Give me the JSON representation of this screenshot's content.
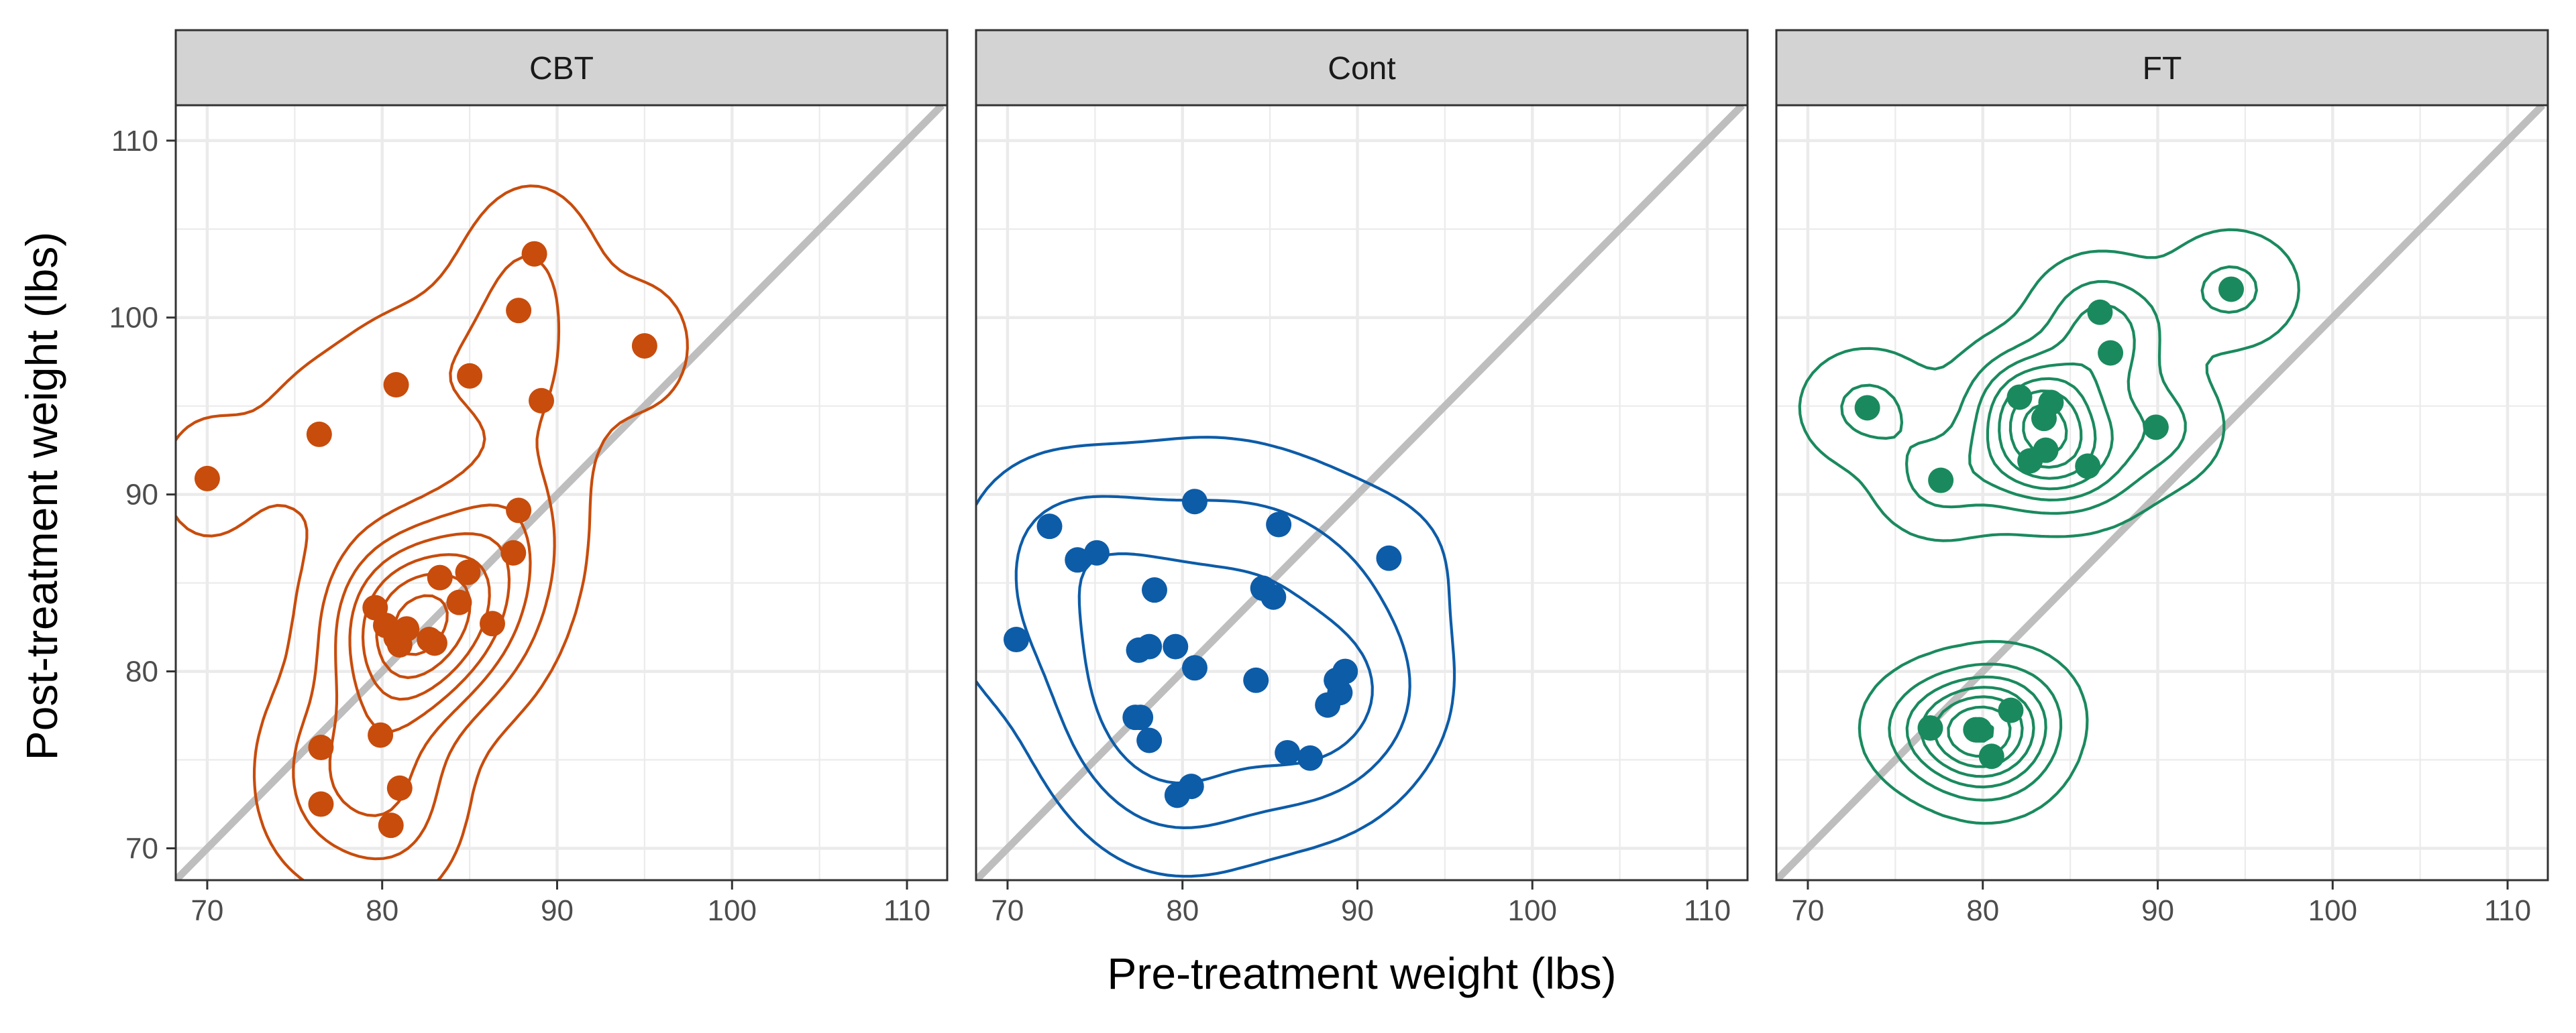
{
  "chart_data": {
    "type": "scatter",
    "facet_by": "Treat",
    "xlabel": "Pre-treatment weight (lbs)",
    "ylabel": "Post-treatment weight (lbs)",
    "xlim": [
      68.2,
      112.3
    ],
    "ylim": [
      68.2,
      112.0
    ],
    "x_ticks": [
      70,
      80,
      90,
      100,
      110
    ],
    "y_ticks": [
      70,
      80,
      90,
      100,
      110
    ],
    "x_tick_labels": [
      "70",
      "80",
      "90",
      "100",
      "110"
    ],
    "y_tick_labels": [
      "70",
      "80",
      "90",
      "100",
      "110"
    ],
    "grid": true,
    "reference_line": {
      "type": "identity",
      "slope": 1,
      "intercept": 0,
      "color": "#bebebe"
    },
    "overlays": [
      "points",
      "2d density contours"
    ],
    "panels": [
      {
        "label": "CBT",
        "color": "#c84c0c",
        "points": [
          [
            70.0,
            90.9
          ],
          [
            76.4,
            93.4
          ],
          [
            80.8,
            96.2
          ],
          [
            85.0,
            96.7
          ],
          [
            89.1,
            95.3
          ],
          [
            88.7,
            103.6
          ],
          [
            87.8,
            100.4
          ],
          [
            95.0,
            98.4
          ],
          [
            87.8,
            89.1
          ],
          [
            87.5,
            86.7
          ],
          [
            83.3,
            85.3
          ],
          [
            84.9,
            85.6
          ],
          [
            84.4,
            83.9
          ],
          [
            86.3,
            82.7
          ],
          [
            79.6,
            83.6
          ],
          [
            80.2,
            82.6
          ],
          [
            80.8,
            81.9
          ],
          [
            81.4,
            82.4
          ],
          [
            81.0,
            81.5
          ],
          [
            82.7,
            81.8
          ],
          [
            83.0,
            81.6
          ],
          [
            79.9,
            76.4
          ],
          [
            76.5,
            75.7
          ],
          [
            81.0,
            73.4
          ],
          [
            76.5,
            72.5
          ],
          [
            80.5,
            71.3
          ]
        ],
        "density_peak": [
          81.4,
          81.8
        ]
      },
      {
        "label": "Cont",
        "color": "#0d5ca8",
        "points": [
          [
            80.7,
            89.6
          ],
          [
            85.5,
            88.3
          ],
          [
            72.4,
            88.2
          ],
          [
            91.8,
            86.4
          ],
          [
            75.1,
            86.7
          ],
          [
            74.0,
            86.3
          ],
          [
            78.4,
            84.6
          ],
          [
            84.6,
            84.7
          ],
          [
            85.2,
            84.2
          ],
          [
            70.5,
            81.8
          ],
          [
            77.5,
            81.2
          ],
          [
            78.1,
            81.4
          ],
          [
            79.6,
            81.4
          ],
          [
            80.7,
            80.2
          ],
          [
            84.2,
            79.5
          ],
          [
            88.8,
            79.5
          ],
          [
            89.3,
            80.0
          ],
          [
            89.0,
            78.8
          ],
          [
            88.3,
            78.1
          ],
          [
            77.3,
            77.4
          ],
          [
            77.6,
            77.4
          ],
          [
            78.1,
            76.1
          ],
          [
            86.0,
            75.4
          ],
          [
            87.3,
            75.1
          ],
          [
            80.5,
            73.5
          ],
          [
            79.7,
            73.0
          ]
        ]
      },
      {
        "label": "FT",
        "color": "#1a8a5e",
        "points": [
          [
            94.2,
            101.6
          ],
          [
            86.7,
            100.3
          ],
          [
            87.3,
            98.0
          ],
          [
            73.4,
            94.9
          ],
          [
            82.1,
            95.5
          ],
          [
            83.9,
            95.2
          ],
          [
            83.5,
            94.3
          ],
          [
            89.9,
            93.8
          ],
          [
            83.6,
            92.5
          ],
          [
            82.7,
            91.9
          ],
          [
            86.0,
            91.6
          ],
          [
            77.6,
            90.8
          ],
          [
            81.6,
            77.8
          ],
          [
            77.0,
            76.8
          ],
          [
            79.6,
            76.7
          ],
          [
            79.8,
            76.7
          ],
          [
            80.5,
            75.2
          ]
        ],
        "density_peaks": [
          [
            83.8,
            93.4
          ],
          [
            80.0,
            76.7
          ]
        ]
      }
    ]
  }
}
